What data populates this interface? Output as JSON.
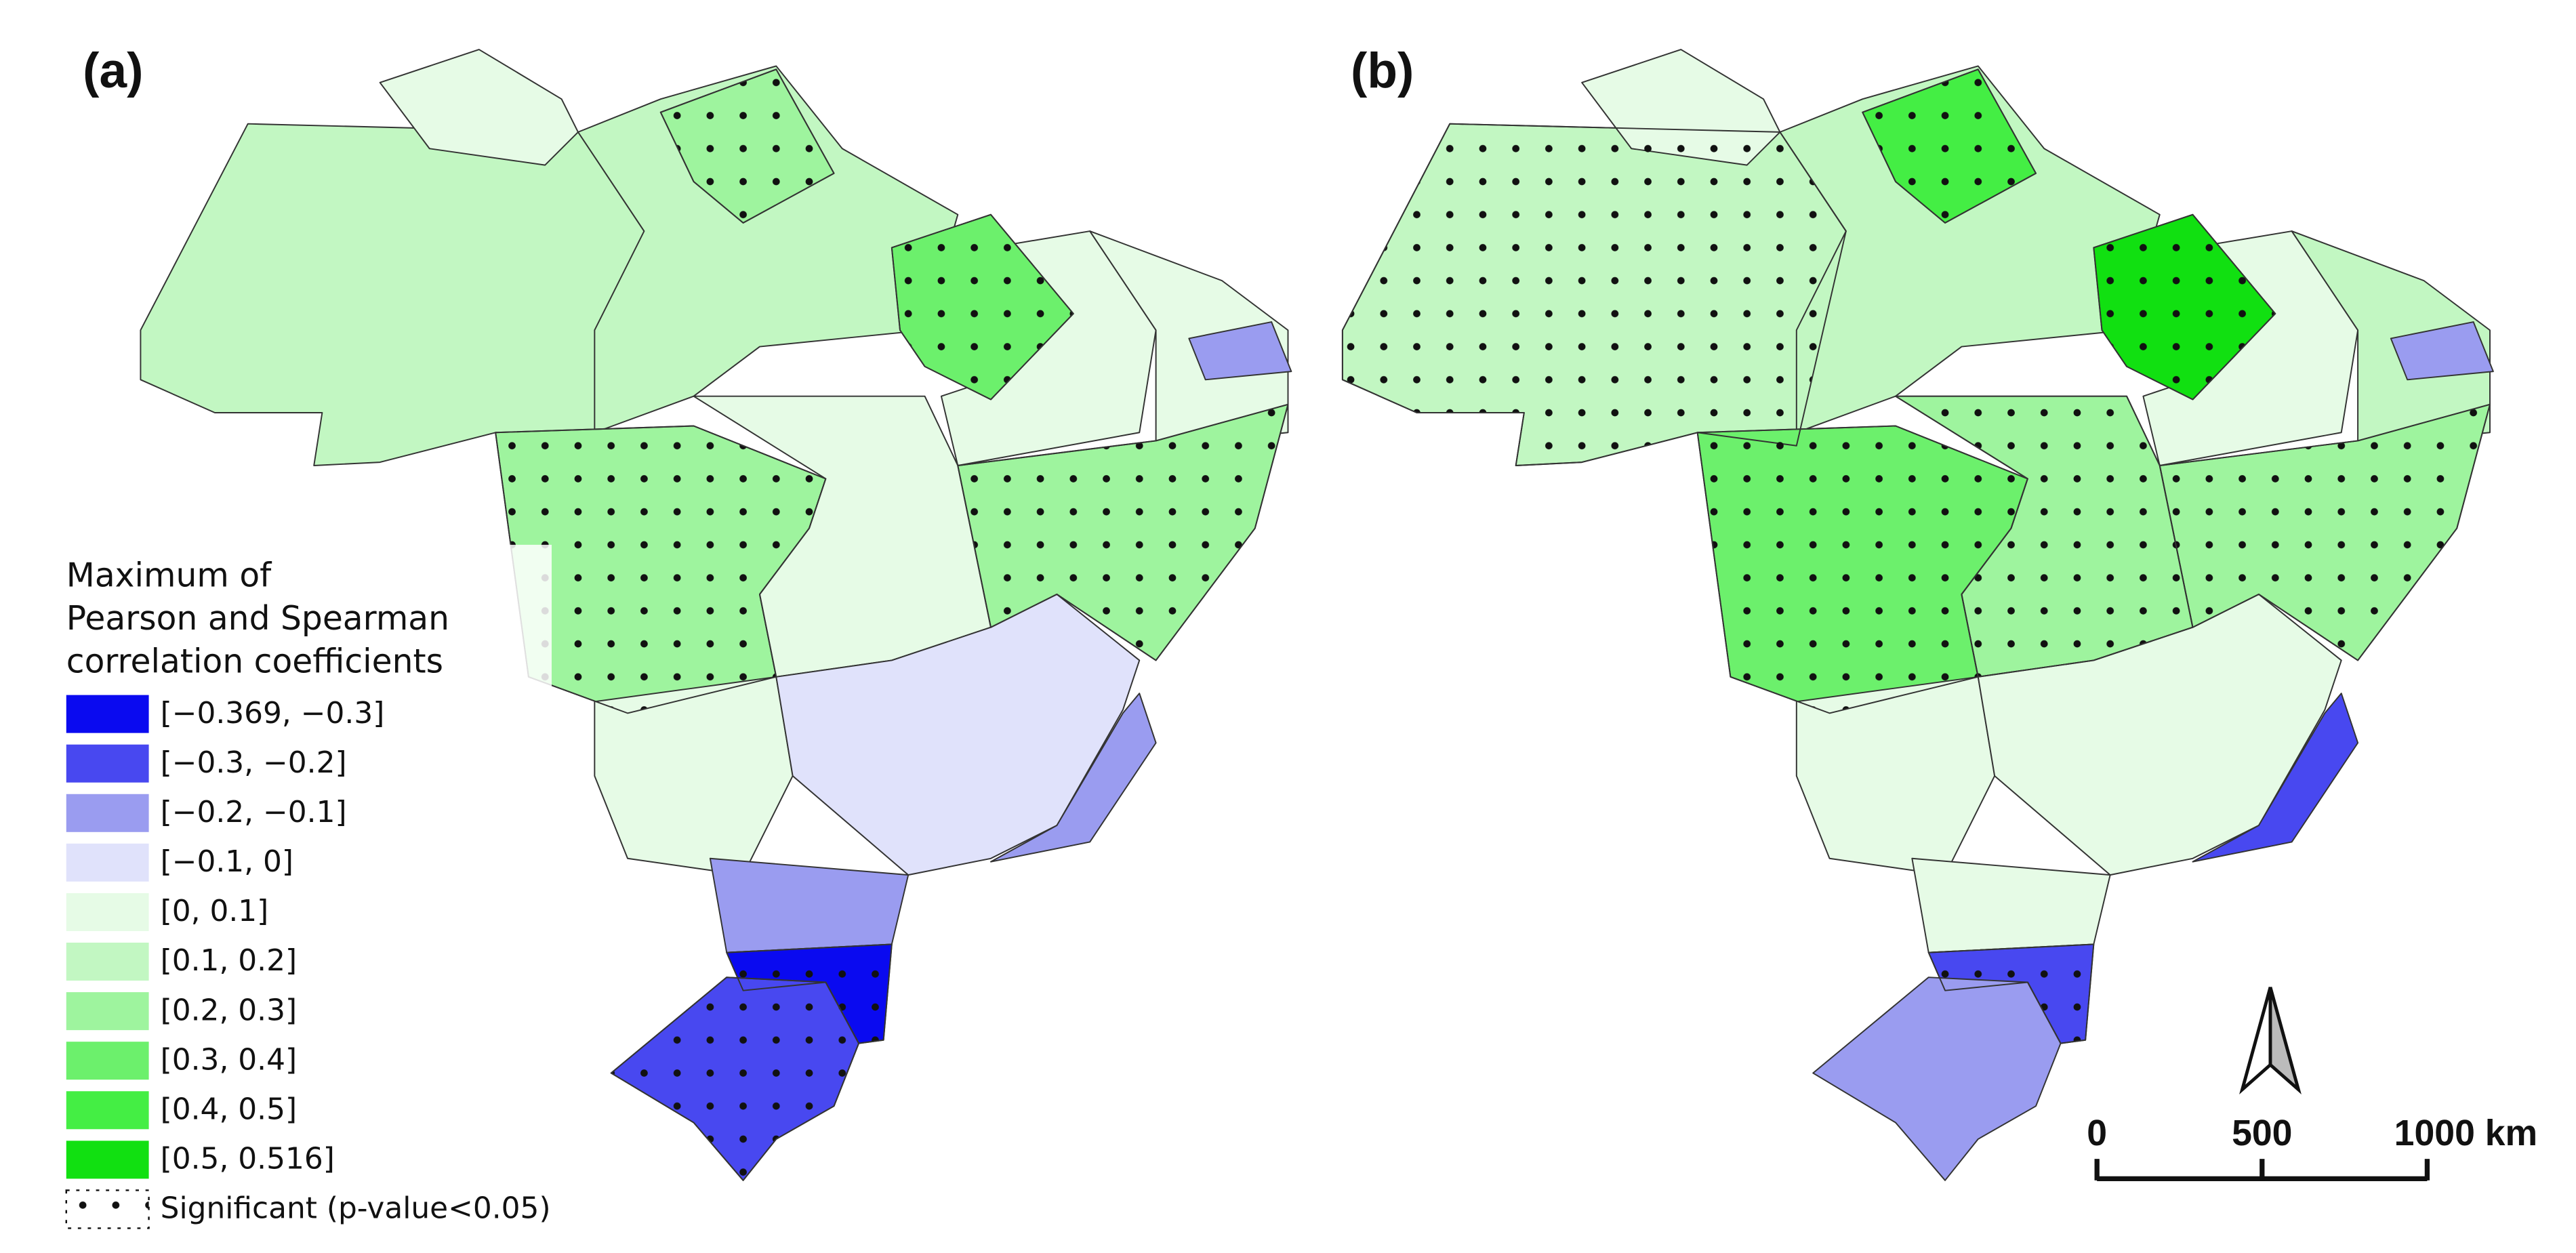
{
  "panels": [
    {
      "label": "(a)"
    },
    {
      "label": "(b)"
    }
  ],
  "legend": {
    "title_lines": [
      "Maximum of",
      "Pearson and Spearman",
      "correlation coefficients"
    ],
    "items": [
      {
        "label": "[−0.369, −0.3]",
        "color": "#0a0af0"
      },
      {
        "label": "[−0.3, −0.2]",
        "color": "#4848f0"
      },
      {
        "label": "[−0.2, −0.1]",
        "color": "#9a9cf0"
      },
      {
        "label": "[−0.1, 0]",
        "color": "#e0e2fb"
      },
      {
        "label": "[0, 0.1]",
        "color": "#e6fbe6"
      },
      {
        "label": "[0.1, 0.2]",
        "color": "#c2f7c2"
      },
      {
        "label": "[0.2, 0.3]",
        "color": "#9ef49e"
      },
      {
        "label": "[0.3, 0.4]",
        "color": "#6cf06c"
      },
      {
        "label": "[0.4, 0.5]",
        "color": "#44ee44"
      },
      {
        "label": "[0.5, 0.516]",
        "color": "#11e011"
      }
    ],
    "significance": "Significant (p-value<0.05)"
  },
  "scale_bar": {
    "labels": [
      "0",
      "500",
      "1000 km"
    ]
  }
}
